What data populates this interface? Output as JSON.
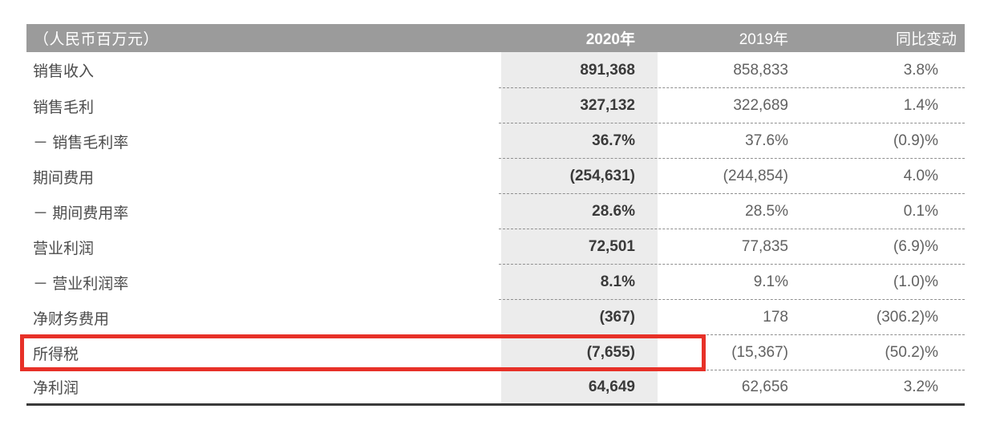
{
  "table": {
    "unit_label": "（人民币百万元）",
    "columns": [
      "2020年",
      "2019年",
      "同比变动"
    ],
    "rows": [
      {
        "label": "销售收入",
        "v2020": "891,368",
        "v2019": "858,833",
        "yoy": "3.8%"
      },
      {
        "label": "销售毛利",
        "v2020": "327,132",
        "v2019": "322,689",
        "yoy": "1.4%"
      },
      {
        "label": "－ 销售毛利率",
        "v2020": "36.7%",
        "v2019": "37.6%",
        "yoy": "(0.9)%"
      },
      {
        "label": "期间费用",
        "v2020": "(254,631)",
        "v2019": "(244,854)",
        "yoy": "4.0%"
      },
      {
        "label": "－ 期间费用率",
        "v2020": "28.6%",
        "v2019": "28.5%",
        "yoy": "0.1%"
      },
      {
        "label": "营业利润",
        "v2020": "72,501",
        "v2019": "77,835",
        "yoy": "(6.9)%"
      },
      {
        "label": "－ 营业利润率",
        "v2020": "8.1%",
        "v2019": "9.1%",
        "yoy": "(1.0)%"
      },
      {
        "label": "净财务费用",
        "v2020": "(367)",
        "v2019": "178",
        "yoy": "(306.2)%"
      },
      {
        "label": "所得税",
        "v2020": "(7,655)",
        "v2019": "(15,367)",
        "yoy": "(50.2)%",
        "highlighted": true
      },
      {
        "label": "净利润",
        "v2020": "64,649",
        "v2019": "62,656",
        "yoy": "3.2%"
      }
    ],
    "highlight": {
      "row_label": "所得税",
      "color": "#e73128"
    },
    "colors": {
      "header_bg": "#9b9b9b",
      "band_bg": "#ececec",
      "bottom_rule": "#3a3a3a"
    }
  }
}
